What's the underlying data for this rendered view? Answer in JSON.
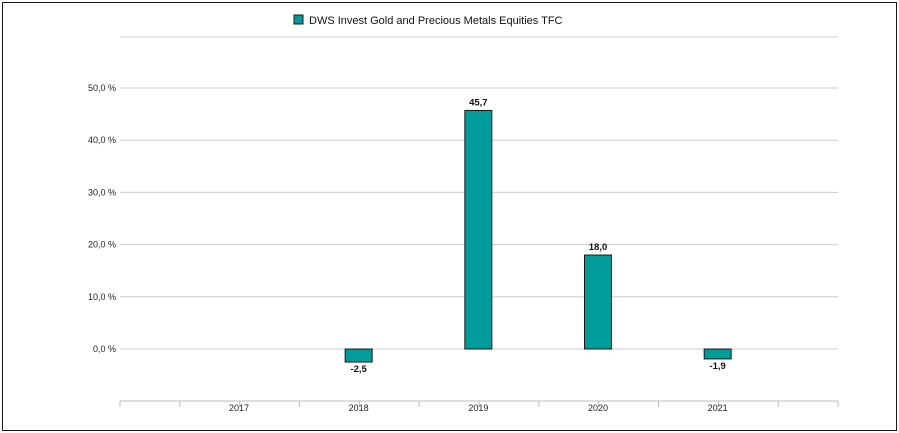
{
  "chart_data": {
    "type": "bar",
    "categories": [
      "2017",
      "2018",
      "2019",
      "2020",
      "2021"
    ],
    "series": [
      {
        "name": "DWS Invest Gold and Precious Metals Equities  TFC",
        "values": [
          null,
          -2.5,
          45.7,
          18.0,
          -1.9
        ],
        "value_labels": [
          "",
          "-2,5",
          "45,7",
          "18,0",
          "-1,9"
        ]
      }
    ],
    "y_ticks": [
      0,
      10,
      20,
      30,
      40,
      50
    ],
    "y_tick_labels": [
      "0,0 %",
      "10,0 %",
      "20,0 %",
      "30,0 %",
      "40,0 %",
      "50,0 %"
    ],
    "ylim": [
      -8,
      50
    ],
    "grid": true,
    "legend_position": "top-center",
    "colors": {
      "bar": "#009b9b",
      "bar_stroke": "#1a1a1a",
      "grid": "#cccccc",
      "axis": "#bbbbbb"
    },
    "title": "",
    "xlabel": "",
    "ylabel": ""
  }
}
